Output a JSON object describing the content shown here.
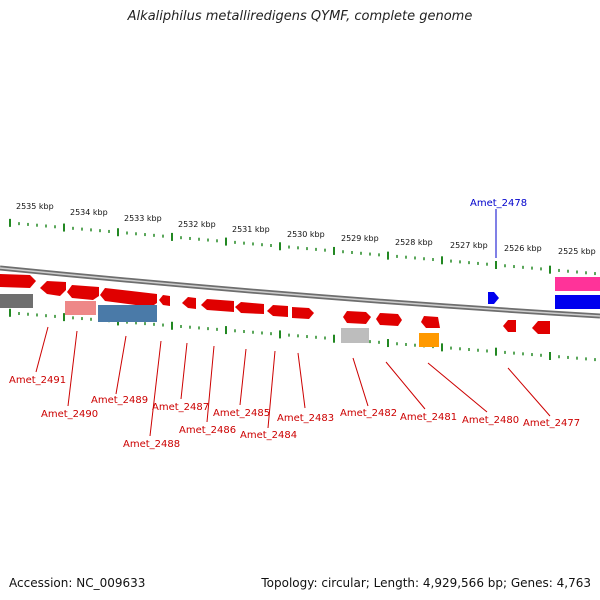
{
  "title": "Alkaliphilus metalliredigens QYMF, complete genome",
  "footer": {
    "accession": "Accession: NC_009633",
    "topology": "Topology: circular; Length: 4,929,566 bp; Genes: 4,763"
  },
  "scale_labels": [
    "2535 kbp",
    "2534 kbp",
    "2533 kbp",
    "2532 kbp",
    "2531 kbp",
    "2530 kbp",
    "2529 kbp",
    "2528 kbp",
    "2527 kbp",
    "2526 kbp",
    "2525 kbp"
  ],
  "gene_labels": [
    "Amet_2491",
    "Amet_2490",
    "Amet_2489",
    "Amet_2488",
    "Amet_2487",
    "Amet_2486",
    "Amet_2485",
    "Amet_2484",
    "Amet_2483",
    "Amet_2482",
    "Amet_2481",
    "Amet_2480",
    "Amet_2477",
    "Amet_2478"
  ],
  "colors": {
    "gene_forward": "#ff0000",
    "gene_highlight": "#0000ff",
    "backbone": "#888888",
    "ticks": "#228822",
    "label_red": "#cc0000",
    "label_blue": "#0000cc",
    "track_gray": "#777777",
    "track_pink": "#ee8888",
    "track_steel": "#4477aa",
    "track_lightgray": "#bbbbbb",
    "track_orange": "#ff9900",
    "track_magenta": "#ff3399",
    "track_blue": "#0000ee"
  }
}
